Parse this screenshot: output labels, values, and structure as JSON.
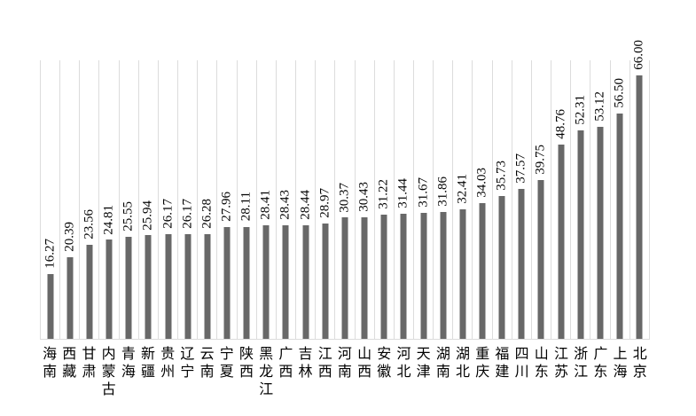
{
  "chart_data": {
    "type": "bar",
    "title": "",
    "xlabel": "",
    "ylabel": "",
    "categories": [
      "海南",
      "西藏",
      "甘肃",
      "内蒙古",
      "青海",
      "新疆",
      "贵州",
      "辽宁",
      "云南",
      "宁夏",
      "陕西",
      "黑龙江",
      "广西",
      "吉林",
      "江西",
      "河南",
      "山西",
      "安徽",
      "河北",
      "天津",
      "湖南",
      "湖北",
      "重庆",
      "福建",
      "四川",
      "山东",
      "江苏",
      "浙江",
      "广东",
      "上海",
      "北京"
    ],
    "values": [
      16.27,
      20.39,
      23.56,
      24.81,
      25.55,
      25.94,
      26.17,
      26.17,
      26.28,
      27.96,
      28.11,
      28.41,
      28.43,
      28.44,
      28.97,
      30.37,
      30.43,
      31.22,
      31.44,
      31.67,
      31.86,
      32.41,
      34.03,
      35.73,
      37.57,
      39.75,
      48.76,
      52.31,
      53.12,
      56.5,
      66.0
    ],
    "value_labels": [
      "16.27",
      "20.39",
      "23.56",
      "24.81",
      "25.55",
      "25.94",
      "26.17",
      "26.17",
      "26.28",
      "27.96",
      "28.11",
      "28.41",
      "28.43",
      "28.44",
      "28.97",
      "30.37",
      "30.43",
      "31.22",
      "31.44",
      "31.67",
      "31.86",
      "32.41",
      "34.03",
      "35.73",
      "37.57",
      "39.75",
      "48.76",
      "52.31",
      "53.12",
      "56.50",
      "66.00"
    ],
    "value_label_rotation_deg": -90,
    "x_label_orientation": "vertical-stacked-characters",
    "ylim": [
      0,
      70
    ],
    "y_axis_ticks": "hidden",
    "legend": "none",
    "gridlines": "vertical-category-separators",
    "colors": {
      "bar": "#686868",
      "gridline": "#dcdcdc",
      "text": "#000000",
      "background": "#ffffff"
    }
  }
}
